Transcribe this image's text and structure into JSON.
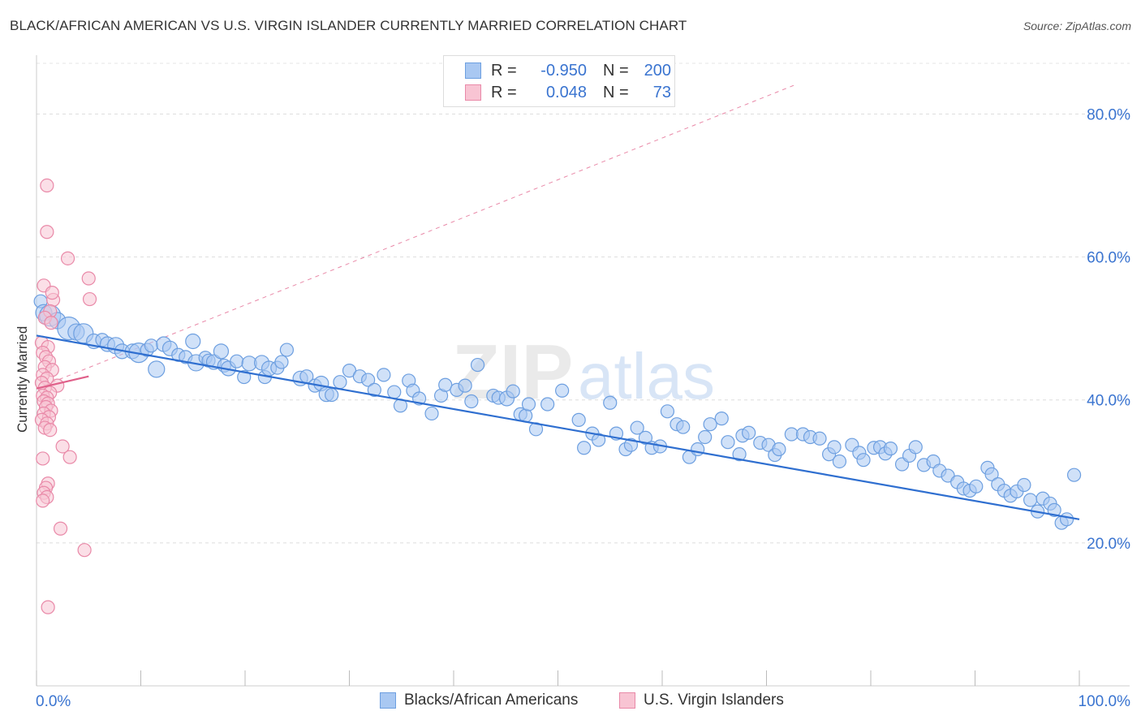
{
  "title": "BLACK/AFRICAN AMERICAN VS U.S. VIRGIN ISLANDER CURRENTLY MARRIED CORRELATION CHART",
  "source": "Source: ZipAtlas.com",
  "watermark": {
    "zip": "ZIP",
    "atlas": "atlas"
  },
  "legend_top": [
    {
      "r_label": "R =",
      "r_value": "-0.950",
      "n_label": "N =",
      "n_value": "200",
      "color": "#a9c8f2",
      "border": "#6d9fe0"
    },
    {
      "r_label": "R =",
      "r_value": "0.048",
      "n_label": "N =",
      "n_value": "73",
      "color": "#f8c4d3",
      "border": "#e989a8"
    }
  ],
  "bottom_legend": [
    {
      "label": "Blacks/African Americans",
      "color": "#a9c8f2",
      "border": "#6d9fe0"
    },
    {
      "label": "U.S. Virgin Islanders",
      "color": "#f8c4d3",
      "border": "#e989a8"
    }
  ],
  "chart_data": {
    "type": "scatter",
    "title": "BLACK/AFRICAN AMERICAN VS U.S. VIRGIN ISLANDER CURRENTLY MARRIED CORRELATION CHART",
    "xlabel": "",
    "ylabel": "Currently Married",
    "xlim": [
      0,
      100
    ],
    "ylim": [
      0,
      88
    ],
    "x_tick_labels": [
      "0.0%",
      "100.0%"
    ],
    "y_ticks": [
      20,
      40,
      60,
      80
    ],
    "y_tick_labels": [
      "20.0%",
      "40.0%",
      "60.0%",
      "80.0%"
    ],
    "grid": true,
    "legend_placement": "top-center and bottom",
    "series": [
      {
        "name": "Blacks/African Americans",
        "color": "#6d9fe0",
        "fill": "#a9c8f2",
        "r": -0.95,
        "n": 200,
        "trend": {
          "x": [
            0,
            100
          ],
          "y": [
            49.0,
            23.3
          ],
          "color": "#2f6fd0"
        },
        "points": [
          [
            0.4,
            53.8,
            8
          ],
          [
            0.7,
            52.2,
            10
          ],
          [
            1.3,
            51.8,
            13
          ],
          [
            2.0,
            51.1,
            10
          ],
          [
            3.1,
            50.0,
            14
          ],
          [
            3.8,
            49.5,
            10
          ],
          [
            4.5,
            49.3,
            12
          ],
          [
            5.5,
            48.2,
            9
          ],
          [
            6.3,
            48.4,
            8
          ],
          [
            6.8,
            47.8,
            9
          ],
          [
            7.6,
            47.6,
            10
          ],
          [
            8.2,
            46.8,
            9
          ],
          [
            9.2,
            46.8,
            9
          ],
          [
            9.8,
            46.6,
            12
          ],
          [
            10.6,
            47.0,
            8
          ],
          [
            11.0,
            47.6,
            8
          ],
          [
            11.5,
            44.3,
            10
          ],
          [
            12.2,
            47.8,
            9
          ],
          [
            12.8,
            47.2,
            9
          ],
          [
            13.6,
            46.3,
            8
          ],
          [
            14.3,
            46.0,
            8
          ],
          [
            15.0,
            48.2,
            9
          ],
          [
            15.3,
            45.2,
            10
          ],
          [
            16.2,
            45.9,
            8
          ],
          [
            16.5,
            45.5,
            8
          ],
          [
            17.0,
            45.3,
            9
          ],
          [
            17.7,
            46.8,
            9
          ],
          [
            18.0,
            44.8,
            8
          ],
          [
            18.4,
            44.4,
            9
          ],
          [
            19.2,
            45.4,
            8
          ],
          [
            19.9,
            43.2,
            8
          ],
          [
            20.4,
            45.1,
            9
          ],
          [
            21.6,
            45.2,
            9
          ],
          [
            21.9,
            43.2,
            8
          ],
          [
            22.3,
            44.4,
            9
          ],
          [
            23.1,
            44.5,
            8
          ],
          [
            23.5,
            45.3,
            8
          ],
          [
            24.0,
            47.0,
            8
          ],
          [
            25.3,
            43.0,
            9
          ],
          [
            25.9,
            43.3,
            8
          ],
          [
            26.7,
            42.0,
            8
          ],
          [
            27.3,
            42.3,
            9
          ],
          [
            27.8,
            40.8,
            9
          ],
          [
            28.3,
            40.7,
            8
          ],
          [
            29.1,
            42.5,
            8
          ],
          [
            30.0,
            44.1,
            8
          ],
          [
            31.0,
            43.3,
            8
          ],
          [
            31.8,
            42.8,
            8
          ],
          [
            32.4,
            41.4,
            8
          ],
          [
            33.3,
            43.5,
            8
          ],
          [
            34.3,
            41.1,
            8
          ],
          [
            34.9,
            39.2,
            8
          ],
          [
            35.7,
            42.7,
            8
          ],
          [
            36.1,
            41.3,
            8
          ],
          [
            36.7,
            40.2,
            8
          ],
          [
            37.9,
            38.1,
            8
          ],
          [
            38.8,
            40.6,
            8
          ],
          [
            39.2,
            42.1,
            8
          ],
          [
            40.3,
            41.4,
            8
          ],
          [
            41.1,
            42.0,
            8
          ],
          [
            41.7,
            39.8,
            8
          ],
          [
            42.3,
            44.9,
            8
          ],
          [
            43.8,
            40.6,
            8
          ],
          [
            44.3,
            40.3,
            8
          ],
          [
            45.1,
            40.2,
            9
          ],
          [
            45.7,
            41.2,
            8
          ],
          [
            46.4,
            38.0,
            8
          ],
          [
            46.9,
            37.8,
            8
          ],
          [
            47.2,
            39.4,
            8
          ],
          [
            47.9,
            35.9,
            8
          ],
          [
            49.0,
            39.4,
            8
          ],
          [
            50.4,
            41.3,
            8
          ],
          [
            52.0,
            37.2,
            8
          ],
          [
            52.5,
            33.3,
            8
          ],
          [
            53.3,
            35.3,
            8
          ],
          [
            53.9,
            34.4,
            8
          ],
          [
            55.0,
            39.6,
            8
          ],
          [
            55.6,
            35.3,
            8
          ],
          [
            56.5,
            33.1,
            8
          ],
          [
            57.0,
            33.7,
            8
          ],
          [
            57.6,
            36.1,
            8
          ],
          [
            58.4,
            34.7,
            8
          ],
          [
            59.0,
            33.3,
            8
          ],
          [
            59.8,
            33.5,
            8
          ],
          [
            60.5,
            38.4,
            8
          ],
          [
            61.4,
            36.6,
            8
          ],
          [
            62.0,
            36.2,
            8
          ],
          [
            62.6,
            32.0,
            8
          ],
          [
            63.4,
            33.1,
            8
          ],
          [
            64.1,
            34.8,
            8
          ],
          [
            64.6,
            36.6,
            8
          ],
          [
            65.7,
            37.4,
            8
          ],
          [
            66.3,
            34.1,
            8
          ],
          [
            67.4,
            32.4,
            8
          ],
          [
            67.7,
            35.0,
            8
          ],
          [
            68.3,
            35.4,
            8
          ],
          [
            69.4,
            34.0,
            8
          ],
          [
            70.2,
            33.7,
            8
          ],
          [
            70.8,
            32.3,
            8
          ],
          [
            71.2,
            33.1,
            8
          ],
          [
            72.4,
            35.2,
            8
          ],
          [
            73.5,
            35.2,
            8
          ],
          [
            74.2,
            34.8,
            8
          ],
          [
            75.1,
            34.6,
            8
          ],
          [
            76.0,
            32.4,
            8
          ],
          [
            76.5,
            33.4,
            8
          ],
          [
            77.0,
            31.4,
            8
          ],
          [
            78.2,
            33.7,
            8
          ],
          [
            78.9,
            32.6,
            8
          ],
          [
            79.3,
            31.6,
            8
          ],
          [
            80.3,
            33.3,
            8
          ],
          [
            80.9,
            33.4,
            8
          ],
          [
            81.4,
            32.5,
            8
          ],
          [
            81.9,
            33.2,
            8
          ],
          [
            83.0,
            31.0,
            8
          ],
          [
            83.7,
            32.2,
            8
          ],
          [
            84.3,
            33.4,
            8
          ],
          [
            85.1,
            30.9,
            8
          ],
          [
            86.0,
            31.4,
            8
          ],
          [
            86.6,
            30.1,
            8
          ],
          [
            87.4,
            29.4,
            8
          ],
          [
            88.3,
            28.5,
            8
          ],
          [
            88.9,
            27.6,
            8
          ],
          [
            89.5,
            27.3,
            8
          ],
          [
            90.1,
            27.9,
            8
          ],
          [
            91.2,
            30.5,
            8
          ],
          [
            91.6,
            29.6,
            8
          ],
          [
            92.2,
            28.2,
            8
          ],
          [
            92.8,
            27.3,
            8
          ],
          [
            93.4,
            26.6,
            8
          ],
          [
            94.0,
            27.2,
            8
          ],
          [
            94.7,
            28.1,
            8
          ],
          [
            95.3,
            26.0,
            8
          ],
          [
            96.0,
            24.4,
            8
          ],
          [
            96.5,
            26.2,
            8
          ],
          [
            97.2,
            25.5,
            8
          ],
          [
            97.6,
            24.6,
            8
          ],
          [
            98.3,
            22.8,
            8
          ],
          [
            98.8,
            23.3,
            8
          ],
          [
            99.5,
            29.5,
            8
          ]
        ]
      },
      {
        "name": "U.S. Virgin Islanders",
        "color": "#e989a8",
        "fill": "#f8c4d3",
        "r": 0.048,
        "n": 73,
        "trend": {
          "x": [
            0,
            5.0
          ],
          "y": [
            41.6,
            43.3
          ],
          "color": "#e0608a"
        },
        "trend_extended": {
          "x": [
            0,
            100
          ],
          "y": [
            41.6,
            100
          ],
          "color": "#e989a8",
          "dashed": true
        },
        "points": [
          [
            1.0,
            70.0,
            8
          ],
          [
            1.0,
            63.5,
            8
          ],
          [
            3.0,
            59.8,
            8
          ],
          [
            0.7,
            56.0,
            8
          ],
          [
            1.6,
            54.0,
            8
          ],
          [
            5.0,
            57.0,
            8
          ],
          [
            5.1,
            54.1,
            8
          ],
          [
            1.5,
            55.0,
            8
          ],
          [
            1.3,
            52.4,
            8
          ],
          [
            0.8,
            51.5,
            8
          ],
          [
            1.4,
            50.8,
            8
          ],
          [
            0.5,
            48.0,
            8
          ],
          [
            1.1,
            47.4,
            8
          ],
          [
            0.6,
            46.6,
            8
          ],
          [
            0.9,
            46.0,
            8
          ],
          [
            1.2,
            45.4,
            8
          ],
          [
            0.8,
            44.6,
            8
          ],
          [
            1.5,
            44.2,
            8
          ],
          [
            0.6,
            43.5,
            8
          ],
          [
            1.0,
            43.0,
            8
          ],
          [
            0.5,
            42.4,
            8
          ],
          [
            2.0,
            42.0,
            8
          ],
          [
            0.8,
            41.7,
            8
          ],
          [
            1.3,
            41.0,
            8
          ],
          [
            0.6,
            40.6,
            8
          ],
          [
            1.0,
            40.3,
            8
          ],
          [
            0.7,
            39.8,
            8
          ],
          [
            1.1,
            39.5,
            8
          ],
          [
            0.9,
            39.0,
            8
          ],
          [
            1.4,
            38.5,
            8
          ],
          [
            0.7,
            38.1,
            8
          ],
          [
            1.2,
            37.6,
            8
          ],
          [
            0.5,
            37.2,
            8
          ],
          [
            1.0,
            36.7,
            8
          ],
          [
            0.8,
            36.1,
            8
          ],
          [
            1.3,
            35.8,
            8
          ],
          [
            2.5,
            33.5,
            8
          ],
          [
            3.2,
            32.0,
            8
          ],
          [
            0.6,
            31.8,
            8
          ],
          [
            1.1,
            28.3,
            8
          ],
          [
            0.9,
            27.7,
            8
          ],
          [
            0.7,
            27.0,
            8
          ],
          [
            1.0,
            26.4,
            8
          ],
          [
            0.6,
            25.9,
            8
          ],
          [
            2.3,
            22.0,
            8
          ],
          [
            4.6,
            19.0,
            8
          ],
          [
            1.1,
            11.0,
            8
          ]
        ]
      }
    ]
  }
}
